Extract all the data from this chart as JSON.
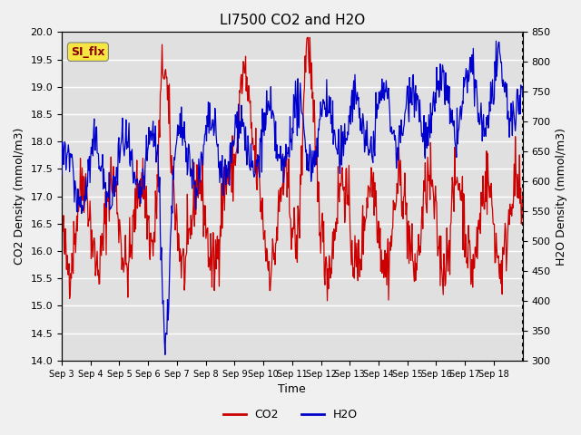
{
  "title": "LI7500 CO2 and H2O",
  "xlabel": "Time",
  "ylabel_left": "CO2 Density (mmol/m3)",
  "ylabel_right": "H2O Density (mmol/m3)",
  "ylim_left": [
    14.0,
    20.0
  ],
  "ylim_right": [
    300,
    850
  ],
  "x_tick_labels": [
    "Sep 3",
    "Sep 4",
    "Sep 5",
    "Sep 6",
    "Sep 7",
    "Sep 8",
    "Sep 9",
    "Sep 10",
    "Sep 11",
    "Sep 12",
    "Sep 13",
    "Sep 14",
    "Sep 15",
    "Sep 16",
    "Sep 17",
    "Sep 18"
  ],
  "annotation_text": "SI_flx",
  "annotation_color": "#8B0000",
  "annotation_bg": "#f5e642",
  "co2_color": "#cc0000",
  "h2o_color": "#0000cc",
  "background_color": "#e0e0e0",
  "grid_color": "#ffffff",
  "legend_co2": "CO2",
  "legend_h2o": "H2O",
  "seed": 42
}
